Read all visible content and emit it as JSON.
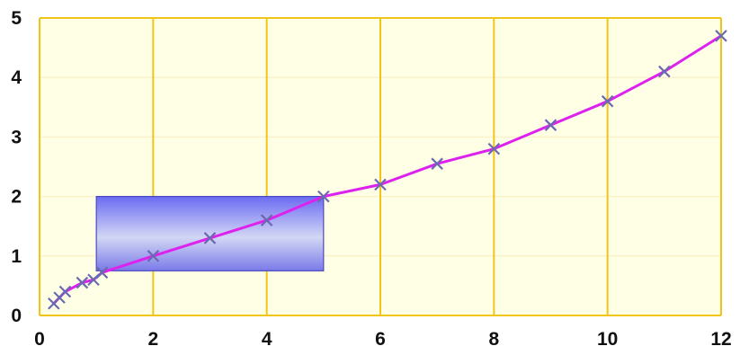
{
  "chart_data": {
    "type": "line",
    "title": "",
    "xlabel": "",
    "ylabel": "",
    "xlim": [
      0,
      12
    ],
    "ylim": [
      0,
      5
    ],
    "x_ticks": [
      0,
      2,
      4,
      6,
      8,
      10,
      12
    ],
    "y_ticks": [
      0,
      1,
      2,
      3,
      4,
      5
    ],
    "x_tick_labels": [
      "0",
      "2",
      "4",
      "6",
      "8",
      "10",
      "12"
    ],
    "y_tick_labels": [
      "0",
      "1",
      "2",
      "3",
      "4",
      "5"
    ],
    "grid": {
      "vertical": true,
      "horizontal": true
    },
    "series": [
      {
        "marker": "x",
        "x": [
          0.25,
          0.35,
          0.45,
          0.75,
          0.95,
          1.1,
          2,
          3,
          4,
          5,
          6,
          7,
          8,
          9,
          10,
          11,
          12
        ],
        "y": [
          0.2,
          0.3,
          0.4,
          0.55,
          0.6,
          0.72,
          1.0,
          1.3,
          1.6,
          2.0,
          2.2,
          2.55,
          2.8,
          3.2,
          3.6,
          4.1,
          4.7
        ]
      }
    ],
    "highlight_region": {
      "x": [
        1.0,
        5.0
      ],
      "y": [
        0.75,
        2.0
      ]
    }
  },
  "colors": {
    "background": "#ffffe6",
    "frame": "#f0c419",
    "vertical_grid": "#f0c419",
    "horizontal_grid": "#fbf1c9",
    "line": "#dd22ee",
    "marker": "#6a6ab0",
    "region_top": "#6b6bf2",
    "region_middle": "#d2d7f4",
    "region_bottom": "#7a7ae8",
    "region_border": "#4b4bbf"
  }
}
